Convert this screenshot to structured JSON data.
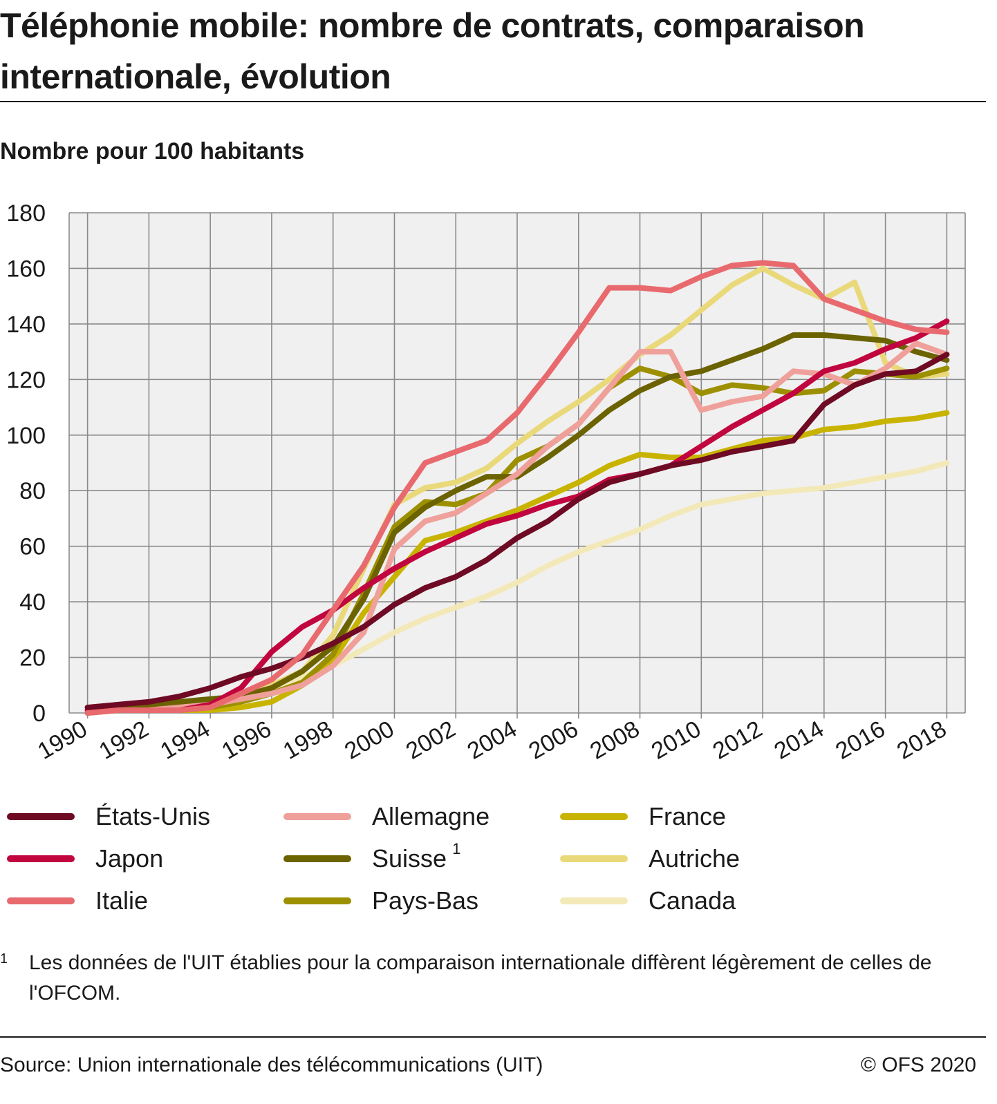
{
  "header": {
    "title": "Téléphonie mobile: nombre de contrats, comparaison internationale, évolution",
    "subtitle": "Nombre pour 100 habitants"
  },
  "footnote": {
    "mark": "1",
    "text": "Les données de l'UIT établies pour la comparaison internationale diffèrent légèrement de celles de l'OFCOM."
  },
  "footer": {
    "source": "Source: Union internationale des télécommunications (UIT)",
    "copyright": "© OFS 2020"
  },
  "chart_data": {
    "type": "line",
    "title": "Téléphonie mobile: nombre de contrats, comparaison internationale, évolution",
    "ylabel": "Nombre pour 100 habitants",
    "xlabel": "",
    "ylim": [
      0,
      180
    ],
    "yticks": [
      0,
      20,
      40,
      60,
      80,
      100,
      120,
      140,
      160,
      180
    ],
    "xticks": [
      1990,
      1992,
      1994,
      1996,
      1998,
      2000,
      2002,
      2004,
      2006,
      2008,
      2010,
      2012,
      2014,
      2016,
      2018
    ],
    "x": [
      1990,
      1991,
      1992,
      1993,
      1994,
      1995,
      1996,
      1997,
      1998,
      1999,
      2000,
      2001,
      2002,
      2003,
      2004,
      2005,
      2006,
      2007,
      2008,
      2009,
      2010,
      2011,
      2012,
      2013,
      2014,
      2015,
      2016,
      2017,
      2018
    ],
    "grid": true,
    "background": "#f0f0f0",
    "legend_position": "bottom",
    "series": [
      {
        "name": "États-Unis",
        "color": "#6e0a24",
        "values": [
          2,
          3,
          4,
          6,
          9,
          13,
          16,
          20,
          25,
          31,
          39,
          45,
          49,
          55,
          63,
          69,
          77,
          83,
          86,
          89,
          91,
          94,
          96,
          98,
          111,
          118,
          122,
          123,
          129
        ]
      },
      {
        "name": "Japon",
        "color": "#c1063f",
        "values": [
          1,
          1,
          1,
          1,
          3,
          9,
          22,
          31,
          37,
          45,
          52,
          58,
          63,
          68,
          71,
          75,
          78,
          84,
          86,
          89,
          96,
          103,
          109,
          115,
          123,
          126,
          131,
          135,
          141
        ]
      },
      {
        "name": "Italie",
        "color": "#e86a6e",
        "values": [
          0,
          1,
          1,
          1,
          2,
          7,
          12,
          21,
          37,
          53,
          74,
          90,
          94,
          98,
          108,
          122,
          137,
          153,
          153,
          152,
          157,
          161,
          162,
          161,
          149,
          145,
          141,
          138,
          137
        ]
      },
      {
        "name": "Allemagne",
        "color": "#f0a09a",
        "values": [
          0,
          1,
          1,
          2,
          3,
          5,
          7,
          10,
          17,
          29,
          59,
          69,
          72,
          79,
          86,
          96,
          104,
          117,
          130,
          130,
          109,
          112,
          114,
          123,
          122,
          118,
          124,
          133,
          129
        ]
      },
      {
        "name": "Suisse",
        "color": "#6b6200",
        "values": [
          2,
          2,
          3,
          4,
          5,
          6,
          9,
          15,
          24,
          41,
          65,
          74,
          80,
          85,
          85,
          92,
          100,
          109,
          116,
          121,
          123,
          127,
          131,
          136,
          136,
          135,
          134,
          130,
          127
        ]
      },
      {
        "name": "Pays-Bas",
        "color": "#9c9000",
        "values": [
          0,
          1,
          1,
          1,
          2,
          4,
          7,
          11,
          21,
          43,
          67,
          76,
          75,
          79,
          91,
          96,
          104,
          117,
          124,
          121,
          115,
          118,
          117,
          115,
          116,
          123,
          122,
          121,
          124
        ]
      },
      {
        "name": "France",
        "color": "#c8b400",
        "values": [
          0,
          1,
          1,
          1,
          1,
          2,
          4,
          10,
          19,
          36,
          49,
          62,
          65,
          69,
          73,
          78,
          83,
          89,
          93,
          92,
          92,
          95,
          98,
          99,
          102,
          103,
          105,
          106,
          108
        ]
      },
      {
        "name": "Autriche",
        "color": "#ead97a",
        "values": [
          1,
          1,
          2,
          3,
          5,
          5,
          10,
          15,
          28,
          52,
          75,
          81,
          83,
          88,
          97,
          105,
          112,
          120,
          129,
          136,
          145,
          154,
          160,
          154,
          149,
          155,
          126,
          121,
          122
        ]
      },
      {
        "name": "Canada",
        "color": "#f3e9b8",
        "values": [
          1,
          2,
          2,
          3,
          4,
          6,
          9,
          13,
          17,
          23,
          29,
          34,
          38,
          42,
          47,
          53,
          58,
          62,
          66,
          71,
          75,
          77,
          79,
          80,
          81,
          83,
          85,
          87,
          90
        ]
      }
    ],
    "annotations": [
      {
        "series": "Suisse",
        "note_mark": "1"
      }
    ]
  }
}
